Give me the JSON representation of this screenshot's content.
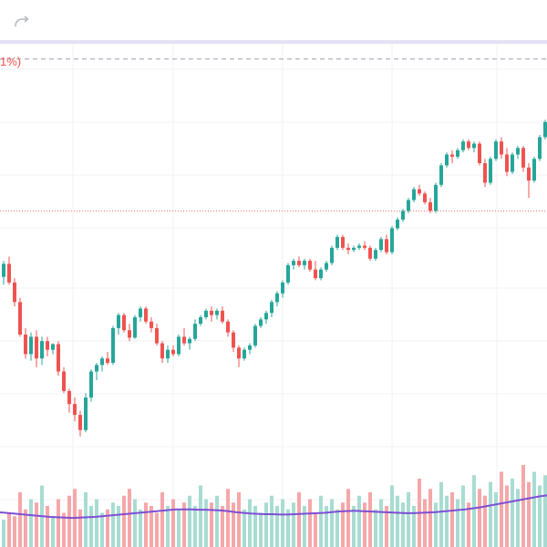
{
  "toolbar": {
    "redo_icon": "redo-arrow-icon"
  },
  "header": {
    "change_text": "1%)"
  },
  "colors": {
    "up": "#26a69a",
    "down": "#ef5350",
    "volume_up": "#a8dcd2",
    "volume_down": "#f5a7a9",
    "ma_line": "#7e4fd4",
    "grid": "#f0f2f5",
    "price_line": "#f26c6c",
    "dashed_top": "#9aa0ad",
    "divider": "#e3e1f4"
  },
  "chart_data": {
    "type": "candlestick",
    "price_range": [
      0,
      100
    ],
    "price_line_value": 64,
    "upper_dashed_value": 99,
    "grid": true,
    "candles": [
      {
        "o": 50.0,
        "h": 52.0,
        "l": 46.0,
        "c": 48.8
      },
      {
        "o": 48.8,
        "h": 52.5,
        "l": 47.0,
        "c": 51.8
      },
      {
        "o": 51.8,
        "h": 53.5,
        "l": 47.0,
        "c": 47.5
      },
      {
        "o": 47.5,
        "h": 48.5,
        "l": 42.0,
        "c": 43.0
      },
      {
        "o": 43.0,
        "h": 44.0,
        "l": 35.0,
        "c": 35.5
      },
      {
        "o": 35.5,
        "h": 37.0,
        "l": 30.0,
        "c": 31.0
      },
      {
        "o": 31.0,
        "h": 36.0,
        "l": 29.5,
        "c": 35.0
      },
      {
        "o": 35.0,
        "h": 36.5,
        "l": 28.0,
        "c": 30.0
      },
      {
        "o": 30.0,
        "h": 35.0,
        "l": 28.5,
        "c": 34.0
      },
      {
        "o": 34.0,
        "h": 35.0,
        "l": 30.5,
        "c": 32.0
      },
      {
        "o": 32.0,
        "h": 33.5,
        "l": 31.0,
        "c": 33.3
      },
      {
        "o": 33.3,
        "h": 34.0,
        "l": 26.0,
        "c": 27.0
      },
      {
        "o": 27.0,
        "h": 28.0,
        "l": 22.0,
        "c": 22.5
      },
      {
        "o": 22.5,
        "h": 23.0,
        "l": 17.5,
        "c": 19.5
      },
      {
        "o": 19.5,
        "h": 21.0,
        "l": 15.5,
        "c": 17.0
      },
      {
        "o": 17.0,
        "h": 18.0,
        "l": 12.0,
        "c": 13.5
      },
      {
        "o": 13.5,
        "h": 22.0,
        "l": 13.0,
        "c": 21.0
      },
      {
        "o": 21.0,
        "h": 27.5,
        "l": 20.0,
        "c": 27.0
      },
      {
        "o": 27.0,
        "h": 29.0,
        "l": 25.0,
        "c": 28.5
      },
      {
        "o": 28.5,
        "h": 30.5,
        "l": 27.0,
        "c": 30.0
      },
      {
        "o": 30.0,
        "h": 31.5,
        "l": 28.5,
        "c": 29.0
      },
      {
        "o": 29.0,
        "h": 37.5,
        "l": 28.5,
        "c": 37.0
      },
      {
        "o": 37.0,
        "h": 40.5,
        "l": 35.5,
        "c": 40.0
      },
      {
        "o": 40.0,
        "h": 40.5,
        "l": 36.0,
        "c": 36.5
      },
      {
        "o": 36.5,
        "h": 38.0,
        "l": 34.0,
        "c": 34.8
      },
      {
        "o": 34.8,
        "h": 40.0,
        "l": 34.5,
        "c": 39.5
      },
      {
        "o": 39.5,
        "h": 42.0,
        "l": 38.5,
        "c": 41.5
      },
      {
        "o": 41.5,
        "h": 42.0,
        "l": 38.0,
        "c": 38.5
      },
      {
        "o": 38.5,
        "h": 39.5,
        "l": 36.0,
        "c": 37.0
      },
      {
        "o": 37.0,
        "h": 38.0,
        "l": 33.0,
        "c": 33.5
      },
      {
        "o": 33.5,
        "h": 34.0,
        "l": 29.0,
        "c": 30.0
      },
      {
        "o": 30.0,
        "h": 33.0,
        "l": 29.0,
        "c": 32.0
      },
      {
        "o": 32.0,
        "h": 33.0,
        "l": 30.5,
        "c": 31.0
      },
      {
        "o": 31.0,
        "h": 35.5,
        "l": 30.5,
        "c": 35.0
      },
      {
        "o": 35.0,
        "h": 37.0,
        "l": 33.0,
        "c": 33.5
      },
      {
        "o": 33.5,
        "h": 35.0,
        "l": 32.0,
        "c": 34.5
      },
      {
        "o": 34.5,
        "h": 39.0,
        "l": 34.0,
        "c": 38.0
      },
      {
        "o": 38.0,
        "h": 40.0,
        "l": 37.5,
        "c": 39.5
      },
      {
        "o": 39.5,
        "h": 41.5,
        "l": 39.0,
        "c": 41.0
      },
      {
        "o": 41.0,
        "h": 42.0,
        "l": 38.5,
        "c": 40.0
      },
      {
        "o": 40.0,
        "h": 41.5,
        "l": 39.0,
        "c": 41.0
      },
      {
        "o": 41.0,
        "h": 42.0,
        "l": 38.0,
        "c": 38.5
      },
      {
        "o": 38.5,
        "h": 39.0,
        "l": 35.0,
        "c": 36.0
      },
      {
        "o": 36.0,
        "h": 36.5,
        "l": 31.5,
        "c": 32.5
      },
      {
        "o": 32.5,
        "h": 33.0,
        "l": 28.0,
        "c": 30.0
      },
      {
        "o": 30.0,
        "h": 32.5,
        "l": 29.5,
        "c": 32.0
      },
      {
        "o": 32.0,
        "h": 33.5,
        "l": 31.0,
        "c": 33.0
      },
      {
        "o": 33.0,
        "h": 38.0,
        "l": 32.5,
        "c": 37.5
      },
      {
        "o": 37.5,
        "h": 39.5,
        "l": 37.0,
        "c": 39.0
      },
      {
        "o": 39.0,
        "h": 41.0,
        "l": 38.0,
        "c": 40.5
      },
      {
        "o": 40.5,
        "h": 43.5,
        "l": 39.5,
        "c": 43.0
      },
      {
        "o": 43.0,
        "h": 45.5,
        "l": 42.0,
        "c": 45.0
      },
      {
        "o": 45.0,
        "h": 48.0,
        "l": 44.0,
        "c": 47.5
      },
      {
        "o": 47.5,
        "h": 52.0,
        "l": 47.0,
        "c": 51.5
      },
      {
        "o": 51.5,
        "h": 53.0,
        "l": 50.5,
        "c": 52.5
      },
      {
        "o": 52.5,
        "h": 53.5,
        "l": 51.0,
        "c": 51.5
      },
      {
        "o": 51.5,
        "h": 53.0,
        "l": 50.5,
        "c": 52.5
      },
      {
        "o": 52.5,
        "h": 53.0,
        "l": 50.0,
        "c": 50.5
      },
      {
        "o": 50.5,
        "h": 52.5,
        "l": 48.0,
        "c": 48.5
      },
      {
        "o": 48.5,
        "h": 51.0,
        "l": 48.0,
        "c": 50.5
      },
      {
        "o": 50.5,
        "h": 52.5,
        "l": 50.0,
        "c": 52.0
      },
      {
        "o": 52.0,
        "h": 56.0,
        "l": 51.5,
        "c": 55.5
      },
      {
        "o": 55.5,
        "h": 58.5,
        "l": 55.0,
        "c": 58.0
      },
      {
        "o": 58.0,
        "h": 58.5,
        "l": 55.0,
        "c": 55.5
      },
      {
        "o": 55.5,
        "h": 56.5,
        "l": 54.0,
        "c": 55.0
      },
      {
        "o": 55.0,
        "h": 56.0,
        "l": 54.5,
        "c": 55.5
      },
      {
        "o": 55.5,
        "h": 56.5,
        "l": 55.0,
        "c": 56.0
      },
      {
        "o": 56.0,
        "h": 57.0,
        "l": 55.0,
        "c": 55.5
      },
      {
        "o": 55.5,
        "h": 56.0,
        "l": 52.5,
        "c": 53.0
      },
      {
        "o": 53.0,
        "h": 55.5,
        "l": 52.5,
        "c": 55.0
      },
      {
        "o": 55.0,
        "h": 58.0,
        "l": 54.5,
        "c": 57.5
      },
      {
        "o": 57.5,
        "h": 58.5,
        "l": 54.0,
        "c": 54.5
      },
      {
        "o": 54.5,
        "h": 60.5,
        "l": 54.0,
        "c": 60.0
      },
      {
        "o": 60.0,
        "h": 62.5,
        "l": 59.5,
        "c": 62.0
      },
      {
        "o": 62.0,
        "h": 64.5,
        "l": 61.5,
        "c": 64.0
      },
      {
        "o": 64.0,
        "h": 67.0,
        "l": 63.5,
        "c": 66.5
      },
      {
        "o": 66.5,
        "h": 69.5,
        "l": 66.0,
        "c": 69.0
      },
      {
        "o": 69.0,
        "h": 70.0,
        "l": 67.5,
        "c": 68.0
      },
      {
        "o": 68.0,
        "h": 68.5,
        "l": 65.5,
        "c": 66.0
      },
      {
        "o": 66.0,
        "h": 67.0,
        "l": 63.5,
        "c": 64.0
      },
      {
        "o": 64.0,
        "h": 70.5,
        "l": 63.5,
        "c": 70.0
      },
      {
        "o": 70.0,
        "h": 75.0,
        "l": 69.5,
        "c": 74.5
      },
      {
        "o": 74.5,
        "h": 77.5,
        "l": 74.0,
        "c": 77.0
      },
      {
        "o": 77.0,
        "h": 78.0,
        "l": 75.0,
        "c": 76.5
      },
      {
        "o": 76.5,
        "h": 78.5,
        "l": 76.0,
        "c": 78.0
      },
      {
        "o": 78.0,
        "h": 80.5,
        "l": 77.5,
        "c": 80.0
      },
      {
        "o": 80.0,
        "h": 80.5,
        "l": 78.0,
        "c": 78.5
      },
      {
        "o": 78.5,
        "h": 80.0,
        "l": 77.5,
        "c": 79.5
      },
      {
        "o": 79.5,
        "h": 80.0,
        "l": 74.5,
        "c": 75.0
      },
      {
        "o": 75.0,
        "h": 76.0,
        "l": 69.5,
        "c": 70.5
      },
      {
        "o": 70.5,
        "h": 76.5,
        "l": 70.0,
        "c": 76.0
      },
      {
        "o": 76.0,
        "h": 80.5,
        "l": 75.5,
        "c": 80.0
      },
      {
        "o": 80.0,
        "h": 81.0,
        "l": 76.0,
        "c": 77.0
      },
      {
        "o": 77.0,
        "h": 78.5,
        "l": 72.0,
        "c": 73.0
      },
      {
        "o": 73.0,
        "h": 77.5,
        "l": 72.5,
        "c": 77.0
      },
      {
        "o": 77.0,
        "h": 79.0,
        "l": 76.0,
        "c": 78.5
      },
      {
        "o": 78.5,
        "h": 79.0,
        "l": 73.0,
        "c": 74.0
      },
      {
        "o": 74.0,
        "h": 75.0,
        "l": 67.0,
        "c": 71.0
      },
      {
        "o": 71.0,
        "h": 76.5,
        "l": 70.5,
        "c": 76.0
      },
      {
        "o": 76.0,
        "h": 81.5,
        "l": 75.5,
        "c": 81.0
      },
      {
        "o": 81.0,
        "h": 85.0,
        "l": 80.5,
        "c": 84.5
      },
      {
        "o": 84.5,
        "h": 85.0,
        "l": 80.0,
        "c": 81.0
      },
      {
        "o": 81.0,
        "h": 83.5,
        "l": 80.0,
        "c": 83.0
      }
    ],
    "volume": [
      12,
      8,
      10,
      9,
      16,
      11,
      14,
      13,
      18,
      12,
      9,
      14,
      10,
      15,
      17,
      11,
      16,
      12,
      14,
      10,
      11,
      13,
      12,
      15,
      17,
      14,
      11,
      13,
      12,
      10,
      16,
      12,
      14,
      11,
      13,
      15,
      12,
      18,
      14,
      13,
      15,
      12,
      17,
      13,
      16,
      11,
      14,
      12,
      10,
      13,
      15,
      12,
      14,
      11,
      13,
      16,
      12,
      14,
      10,
      15,
      12,
      14,
      11,
      13,
      17,
      12,
      15,
      13,
      16,
      11,
      14,
      12,
      18,
      15,
      13,
      16,
      12,
      20,
      14,
      17,
      13,
      19,
      15,
      16,
      14,
      18,
      13,
      21,
      17,
      15,
      19,
      16,
      22,
      18,
      20,
      17,
      24,
      19,
      22,
      18,
      21,
      20,
      25
    ],
    "ma_line": [
      10.2,
      10.0,
      9.8,
      9.6,
      9.4,
      9.2,
      9.0,
      8.8,
      8.7,
      8.6,
      8.5,
      8.6,
      8.7,
      8.8,
      9.0,
      9.2,
      9.4,
      9.6,
      9.8,
      10.0,
      10.2,
      10.4,
      10.6,
      10.8,
      11.0,
      11.0,
      11.0,
      10.9,
      10.9,
      10.8,
      10.7,
      10.5,
      10.2,
      10.0,
      9.8,
      9.7,
      9.6,
      9.6,
      9.5,
      9.5,
      9.6,
      9.7,
      9.8,
      9.9,
      10.0,
      10.2,
      10.4,
      10.5,
      10.6,
      10.5,
      10.4,
      10.3,
      10.2,
      10.1,
      10.0,
      9.9,
      9.9,
      10.0,
      10.1,
      10.2,
      10.4,
      10.6,
      10.8,
      11.0,
      11.3,
      11.6,
      12.0,
      12.4,
      12.8,
      13.2,
      13.6,
      14.0,
      14.4,
      14.8,
      15.1,
      15.3,
      15.5
    ]
  }
}
